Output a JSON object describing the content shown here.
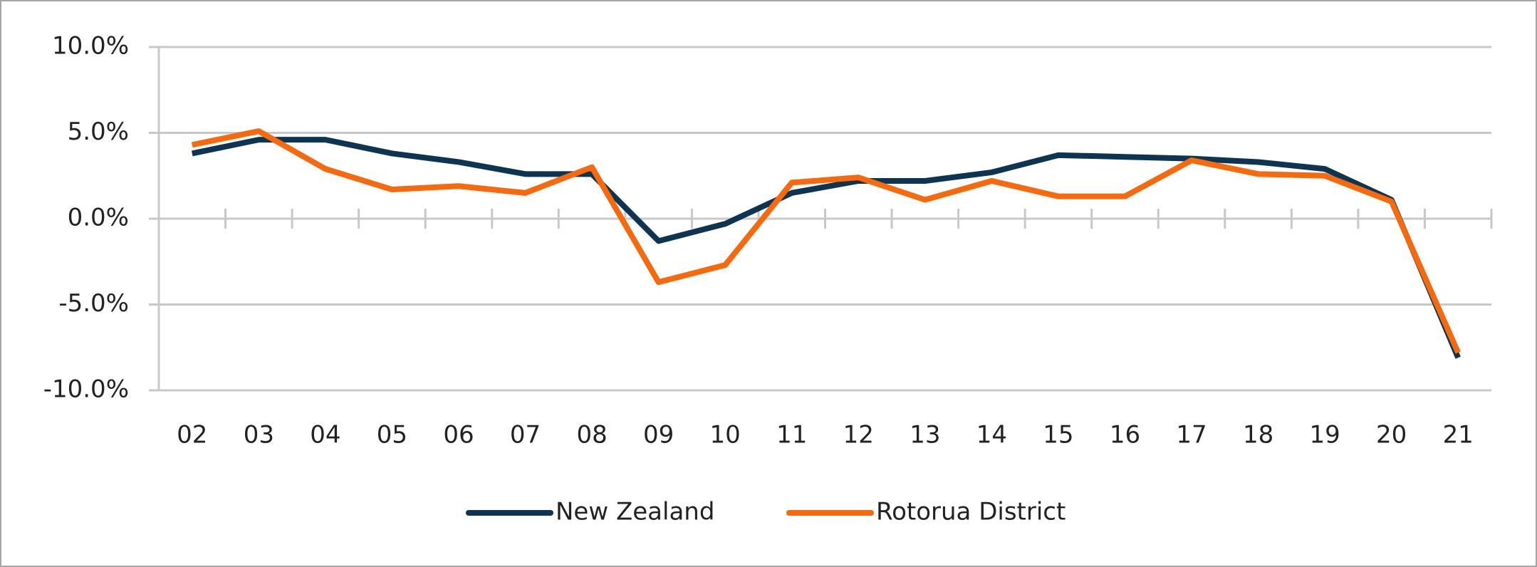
{
  "chart_data": {
    "type": "line",
    "categories": [
      "02",
      "03",
      "04",
      "05",
      "06",
      "07",
      "08",
      "09",
      "10",
      "11",
      "12",
      "13",
      "14",
      "15",
      "16",
      "17",
      "18",
      "19",
      "20",
      "21"
    ],
    "series": [
      {
        "name": "New Zealand",
        "color": "#0d3552",
        "values": [
          3.8,
          4.6,
          4.6,
          3.8,
          3.3,
          2.6,
          2.6,
          -1.3,
          -0.3,
          1.5,
          2.2,
          2.2,
          2.7,
          3.7,
          3.6,
          3.5,
          3.3,
          2.9,
          1.1,
          -8.1
        ]
      },
      {
        "name": "Rotorua District",
        "color": "#f56a0f",
        "values": [
          4.3,
          5.1,
          2.9,
          1.7,
          1.9,
          1.5,
          3.0,
          -3.7,
          -2.7,
          2.1,
          2.4,
          1.1,
          2.2,
          1.3,
          1.3,
          3.4,
          2.6,
          2.5,
          1.0,
          -7.8
        ]
      }
    ],
    "ylim": [
      -10,
      10
    ],
    "yticks": [
      {
        "value": -10,
        "label": "-10.0%"
      },
      {
        "value": -5,
        "label": "-5.0%"
      },
      {
        "value": 0,
        "label": "0.0%"
      },
      {
        "value": 5,
        "label": "5.0%"
      },
      {
        "value": 10,
        "label": "10.0%"
      }
    ],
    "grid": true,
    "legend": "bottom"
  }
}
